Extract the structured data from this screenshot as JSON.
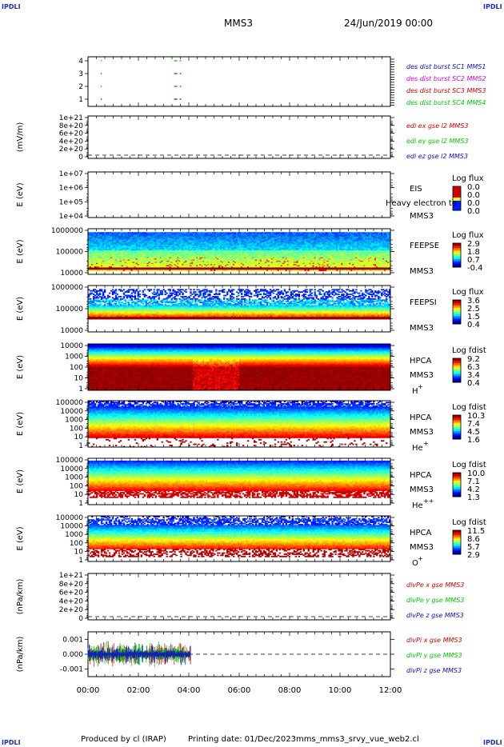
{
  "corner_tl": "IPDLI",
  "corner_tr": "IPDLI",
  "corner_bl": "IPDLI",
  "corner_br": "IPDLI",
  "header": {
    "spacecraft": "MMS3",
    "date": "24/Jun/2019 00:00"
  },
  "footer": {
    "producer": "Produced by cl (IRAP)",
    "printed": "Printing date: 01/Dec/2023",
    "file": "mms_mms3_srvy_vue_web2.cl"
  },
  "colors": {
    "red": "#d40000",
    "green": "#00c800",
    "blue": "#1010c8",
    "magenta": "#e000e0"
  },
  "chart_data": [
    {
      "type": "line",
      "title": "burst availability",
      "ylabel": "",
      "yticks": [
        "4",
        "3",
        "2",
        "1"
      ],
      "xlim": [
        "00:00",
        "12:00"
      ],
      "series": [
        {
          "name": "des dist burst SC1 MMS1",
          "level": 1,
          "color": "#1010c8",
          "intervals": [
            [
              "00:30",
              "00:33"
            ],
            [
              "03:25",
              "03:42"
            ]
          ]
        },
        {
          "name": "des dist burst SC2 MMS2",
          "level": 2,
          "color": "#e000e0",
          "intervals": [
            [
              "00:30",
              "00:33"
            ],
            [
              "03:25",
              "03:42"
            ]
          ]
        },
        {
          "name": "des dist burst SC3 MMS3",
          "level": 3,
          "color": "#d40000",
          "intervals": [
            [
              "00:30",
              "00:33"
            ],
            [
              "03:25",
              "03:42"
            ]
          ]
        },
        {
          "name": "des dist burst SC4 MMS4",
          "level": 4,
          "color": "#00c800",
          "intervals": [
            [
              "00:30",
              "00:33"
            ],
            [
              "03:25",
              "03:42"
            ]
          ]
        }
      ]
    },
    {
      "type": "line",
      "ylabel": "(mV/m)",
      "yticks": [
        "1e+21",
        "8e+20",
        "6e+20",
        "4e+20",
        "2e+20",
        "0"
      ],
      "ylim": [
        0,
        1e+21
      ],
      "series": [
        {
          "name": "edi ex gse l2 MMS3",
          "color": "#d40000",
          "values": []
        },
        {
          "name": "edi ey gse l2 MMS3",
          "color": "#00c800",
          "values": []
        },
        {
          "name": "edi ez gse l2 MMS3",
          "color": "#1010c8",
          "values": []
        }
      ],
      "zero_line": "dashed"
    },
    {
      "type": "heatmap",
      "ylabel": "E (eV)",
      "yticks": [
        "1e+07",
        "1e+06",
        "1e+05",
        "1e+04"
      ],
      "instrument": "EIS",
      "species": "Heavy electron to",
      "sc": "MMS3",
      "cbar_title": "Log flux",
      "cbar_ticks": [
        "0.0",
        "0.0",
        "0.0",
        "0.0"
      ],
      "data": "empty"
    },
    {
      "type": "heatmap",
      "ylabel": "E (eV)",
      "yticks": [
        "1000000",
        "100000",
        "10000"
      ],
      "instrument": "FEEPSE",
      "sc": "MMS3",
      "cbar_title": "Log flux",
      "cbar_ticks": [
        "2.9",
        "1.8",
        "0.7",
        "-0.4"
      ],
      "time_range": [
        "00:00",
        "12:00"
      ]
    },
    {
      "type": "heatmap",
      "ylabel": "E (eV)",
      "yticks": [
        "1000000",
        "100000",
        "10000"
      ],
      "instrument": "FEEPSI",
      "sc": "MMS3",
      "cbar_title": "Log flux",
      "cbar_ticks": [
        "3.6",
        "2.5",
        "1.5",
        "0.4"
      ],
      "time_range": [
        "00:00",
        "12:00"
      ]
    },
    {
      "type": "heatmap",
      "ylabel": "E (eV)",
      "yticks": [
        "10000",
        "1000",
        "100",
        "10",
        "1"
      ],
      "instrument": "HPCA",
      "sc": "MMS3",
      "species": "H",
      "species_sup": "+",
      "cbar_title": "Log fdist",
      "cbar_ticks": [
        "9.2",
        "6.3",
        "3.4",
        "0.4"
      ],
      "time_range": [
        "00:00",
        "12:00"
      ]
    },
    {
      "type": "heatmap",
      "ylabel": "E (eV)",
      "yticks": [
        "100000",
        "10000",
        "1000",
        "100",
        "10",
        "1"
      ],
      "instrument": "HPCA",
      "sc": "MMS3",
      "species": "He",
      "species_sup": "+",
      "cbar_title": "Log fdist",
      "cbar_ticks": [
        "10.3",
        "7.4",
        "4.5",
        "1.6"
      ],
      "time_range": [
        "00:00",
        "12:00"
      ]
    },
    {
      "type": "heatmap",
      "ylabel": "E (eV)",
      "yticks": [
        "100000",
        "10000",
        "1000",
        "100",
        "10",
        "1"
      ],
      "instrument": "HPCA",
      "sc": "MMS3",
      "species": "He",
      "species_sup": "++",
      "cbar_title": "Log fdist",
      "cbar_ticks": [
        "10.0",
        "7.1",
        "4.2",
        "1.3"
      ],
      "time_range": [
        "00:00",
        "12:00"
      ]
    },
    {
      "type": "heatmap",
      "ylabel": "E (eV)",
      "yticks": [
        "100000",
        "10000",
        "1000",
        "100",
        "10",
        "1"
      ],
      "instrument": "HPCA",
      "sc": "MMS3",
      "species": "O",
      "species_sup": "+",
      "cbar_title": "Log fdist",
      "cbar_ticks": [
        "11.5",
        "8.6",
        "5.7",
        "2.9"
      ],
      "time_range": [
        "00:00",
        "12:00"
      ]
    },
    {
      "type": "line",
      "ylabel": "(nPa/km)",
      "yticks": [
        "1e+21",
        "8e+20",
        "6e+20",
        "4e+20",
        "2e+20",
        "0"
      ],
      "ylim": [
        0,
        1e+21
      ],
      "series": [
        {
          "name": "divPe x gse MMS3",
          "color": "#d40000",
          "values": []
        },
        {
          "name": "divPe y gse MMS3",
          "color": "#00c800",
          "values": []
        },
        {
          "name": "divPe z gse MMS3",
          "color": "#1010c8",
          "values": []
        }
      ],
      "zero_line": "dashed"
    },
    {
      "type": "line",
      "ylabel": "(nPa/km)",
      "yticks": [
        "0.001",
        "0.000",
        "-0.001"
      ],
      "ylim": [
        -0.0015,
        0.0015
      ],
      "series": [
        {
          "name": "divPi x gse MMS3",
          "color": "#d40000",
          "time_range": [
            "00:00",
            "04:05"
          ],
          "amplitude": 0.0009
        },
        {
          "name": "divPi y gse MMS3",
          "color": "#00c800",
          "time_range": [
            "00:00",
            "04:05"
          ],
          "amplitude": 0.001
        },
        {
          "name": "divPi z gse MMS3",
          "color": "#1010c8",
          "time_range": [
            "00:00",
            "04:05"
          ],
          "amplitude": 0.0008
        }
      ],
      "zero_line": "dashed",
      "xticks": [
        "00:00",
        "02:00",
        "04:00",
        "06:00",
        "08:00",
        "10:00",
        "12:00"
      ]
    }
  ]
}
